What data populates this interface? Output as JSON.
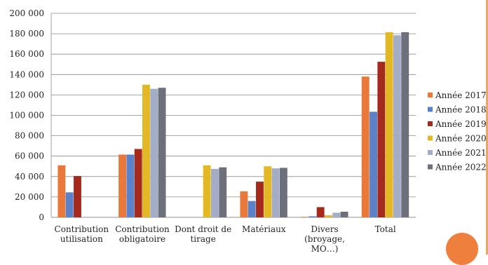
{
  "chart_data": {
    "type": "bar",
    "categories": [
      [
        "Contribution",
        "utilisation"
      ],
      [
        "Contribution",
        "obligatoire"
      ],
      [
        "Dont droit de",
        "tirage"
      ],
      [
        "Matériaux"
      ],
      [
        "Divers",
        "(broyage,",
        "MO…)"
      ],
      [
        "Total"
      ]
    ],
    "series": [
      {
        "name": "Année 2017",
        "color": "#e8793a",
        "values": [
          51000,
          61500,
          0,
          25500,
          500,
          138000
        ]
      },
      {
        "name": "Année 2018",
        "color": "#5b82c9",
        "values": [
          24500,
          61500,
          0,
          16000,
          1000,
          103500
        ]
      },
      {
        "name": "Année 2019",
        "color": "#a32a1d",
        "values": [
          40500,
          67000,
          0,
          35000,
          10000,
          152500
        ]
      },
      {
        "name": "Année 2020",
        "color": "#e2b824",
        "values": [
          0,
          130000,
          51000,
          50000,
          2000,
          181500
        ]
      },
      {
        "name": "Année 2021",
        "color": "#a3adc5",
        "values": [
          0,
          126000,
          47500,
          48000,
          4500,
          178500
        ]
      },
      {
        "name": "Année 2022",
        "color": "#6d6f7a",
        "values": [
          0,
          127000,
          49000,
          48500,
          5500,
          181500
        ]
      }
    ],
    "ylim": [
      0,
      200000
    ],
    "yticks": [
      "0",
      "20 000",
      "40 000",
      "60 000",
      "80 000",
      "100 000",
      "120 000",
      "140 000",
      "160 000",
      "180 000",
      "200 000"
    ],
    "grid": true,
    "legend_position": "right"
  }
}
